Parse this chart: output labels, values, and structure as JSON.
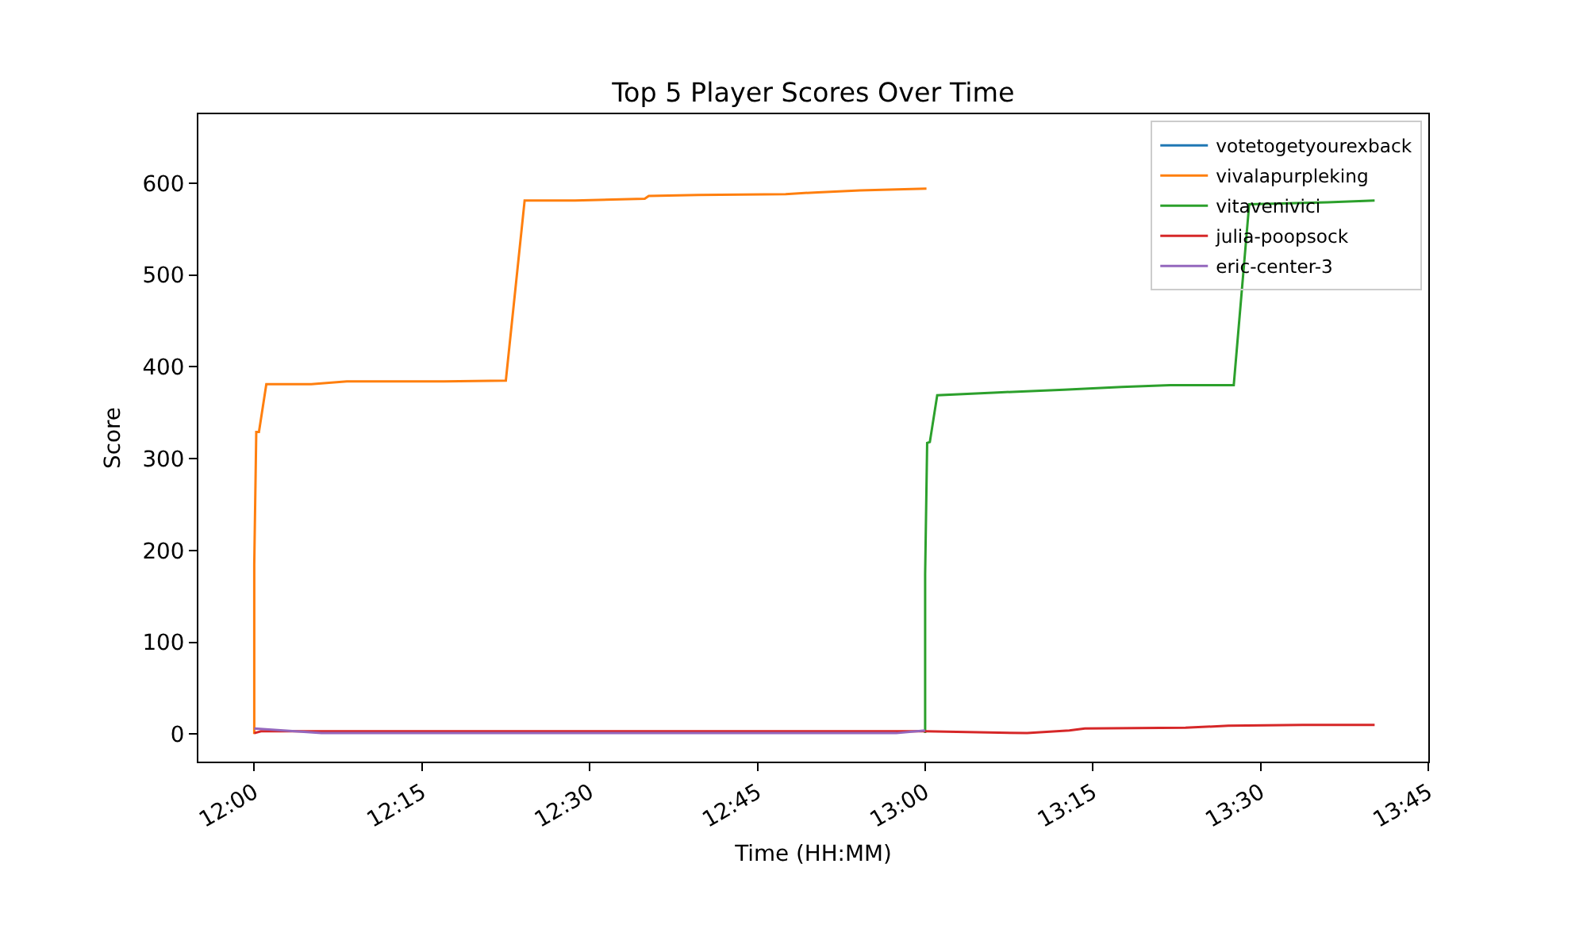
{
  "chart_data": {
    "type": "line",
    "title": "Top 5 Player Scores Over Time",
    "xlabel": "Time (HH:MM)",
    "ylabel": "Score",
    "xlim": [
      11.9167,
      13.75
    ],
    "xticks": [
      {
        "value": 12,
        "label": "12:00"
      },
      {
        "value": 12.25,
        "label": "12:15"
      },
      {
        "value": 12.5,
        "label": "12:30"
      },
      {
        "value": 12.75,
        "label": "12:45"
      },
      {
        "value": 13,
        "label": "13:00"
      },
      {
        "value": 13.25,
        "label": "13:15"
      },
      {
        "value": 13.5,
        "label": "13:30"
      },
      {
        "value": 13.75,
        "label": "13:45"
      }
    ],
    "ylim": [
      -30,
      675
    ],
    "yticks": [
      0,
      100,
      200,
      300,
      400,
      500,
      600
    ],
    "legend": "top right",
    "line_style": "solid",
    "series": [
      {
        "name": "votetogetyourexback",
        "color": "#1f77b4"
      },
      {
        "name": "vivalapurpleking",
        "color": "#ff7f0e",
        "x": [
          12,
          12,
          12.003,
          12.007,
          12.018,
          12.085,
          12.138,
          12.283,
          12.375,
          12.403,
          12.478,
          12.582,
          12.588,
          12.662,
          12.792,
          12.84,
          12.903,
          13.002
        ],
        "values": [
          0,
          185,
          329,
          329,
          381,
          381,
          384,
          384,
          385,
          581,
          581,
          583,
          586,
          587,
          588,
          590,
          592,
          594
        ]
      },
      {
        "name": "vitavenivici",
        "color": "#2ca02c",
        "x": [
          13,
          13,
          13.003,
          13.007,
          13.018,
          13.108,
          13.207,
          13.293,
          13.365,
          13.46,
          13.483,
          13.6,
          13.67
        ],
        "values": [
          1,
          174,
          317,
          318,
          369,
          372,
          375,
          378,
          380,
          380,
          577,
          579,
          581
        ]
      },
      {
        "name": "julia-poopsock",
        "color": "#d62728",
        "x": [
          12,
          12.01,
          12.5,
          13,
          13.152,
          13.215,
          13.238,
          13.388,
          13.452,
          13.563,
          13.67
        ],
        "values": [
          1,
          3,
          3,
          3,
          1,
          4,
          6,
          7,
          9,
          10,
          10
        ]
      },
      {
        "name": "eric-center-3",
        "color": "#9467bd",
        "x": [
          12,
          12.1,
          12.957,
          13
        ],
        "values": [
          6,
          1,
          1,
          4
        ]
      }
    ]
  }
}
